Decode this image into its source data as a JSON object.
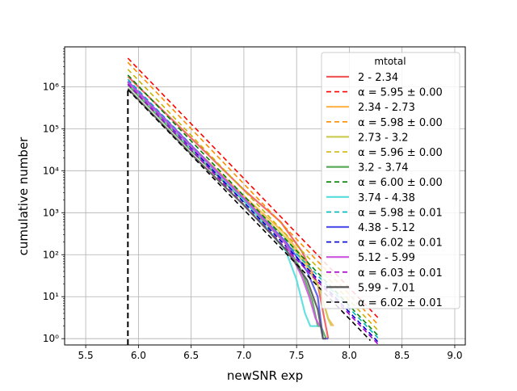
{
  "chart_data": {
    "type": "line",
    "title": "",
    "xlabel": "newSNR exp",
    "ylabel": "cumulative number",
    "xlim": [
      5.3,
      9.1
    ],
    "ylim_log10": [
      -0.15,
      6.95
    ],
    "yscale": "log",
    "grid": true,
    "legend_title": "mtotal",
    "legend_placement": "upper right",
    "x_ticks": [
      5.5,
      6.0,
      6.5,
      7.0,
      7.5,
      8.0,
      8.5,
      9.0
    ],
    "x_tick_labels": [
      "5.5",
      "6.0",
      "6.5",
      "7.0",
      "7.5",
      "8.0",
      "8.5",
      "9.0"
    ],
    "y_ticks_log10": [
      0,
      1,
      2,
      3,
      4,
      5,
      6
    ],
    "y_tick_labels": [
      "10⁰",
      "10¹",
      "10²",
      "10³",
      "10⁴",
      "10⁵",
      "10⁶"
    ],
    "threshold_x": 5.9,
    "series": [
      {
        "name": "2 - 2.34",
        "color": "#f25a5a",
        "x": [
          5.9,
          6.5,
          7.0,
          7.35,
          7.55,
          7.7,
          7.8
        ],
        "y": [
          1750000,
          60000,
          3500,
          600,
          120,
          20,
          1
        ]
      },
      {
        "name": "α = 5.95 ± 0.00",
        "color": "#ff0000",
        "dashed": true,
        "x": [
          5.9,
          8.27
        ],
        "y": [
          4800000,
          3.2
        ]
      },
      {
        "name": "2.34 - 2.73",
        "color": "#ffb347",
        "x": [
          5.9,
          6.5,
          7.0,
          7.4,
          7.6,
          7.72,
          7.8,
          7.85
        ],
        "y": [
          1300000,
          40000,
          2500,
          300,
          60,
          15,
          3,
          2
        ]
      },
      {
        "name": "α = 5.98 ± 0.00",
        "color": "#ff8c00",
        "dashed": true,
        "x": [
          5.9,
          8.27
        ],
        "y": [
          3800000,
          2.2
        ]
      },
      {
        "name": "2.73 - 3.2",
        "color": "#cccc55",
        "x": [
          5.9,
          6.5,
          7.0,
          7.4,
          7.6,
          7.72,
          7.8,
          7.83
        ],
        "y": [
          1200000,
          35000,
          2200,
          250,
          50,
          15,
          3,
          2
        ]
      },
      {
        "name": "α = 5.96 ± 0.00",
        "color": "#c8b400",
        "dashed": true,
        "x": [
          5.9,
          8.27
        ],
        "y": [
          2600000,
          1.6
        ]
      },
      {
        "name": "3.2 - 3.74",
        "color": "#5aaa5a",
        "x": [
          5.9,
          6.5,
          7.0,
          7.4,
          7.55,
          7.65,
          7.7,
          7.73,
          7.78
        ],
        "y": [
          1100000,
          30000,
          1900,
          180,
          40,
          8,
          2,
          2,
          1
        ]
      },
      {
        "name": "α = 6.00 ± 0.00",
        "color": "#008000",
        "dashed": true,
        "x": [
          5.9,
          8.27
        ],
        "y": [
          1900000,
          1.2
        ]
      },
      {
        "name": "3.74 - 4.38",
        "color": "#55dddd",
        "x": [
          5.9,
          6.5,
          7.0,
          7.4,
          7.5,
          7.58,
          7.63,
          7.7
        ],
        "y": [
          1250000,
          35000,
          2000,
          120,
          25,
          4,
          2,
          2
        ]
      },
      {
        "name": "α = 5.98 ± 0.01",
        "color": "#00bbbb",
        "dashed": true,
        "x": [
          5.9,
          8.27
        ],
        "y": [
          1500000,
          1.05
        ]
      },
      {
        "name": "4.38 - 5.12",
        "color": "#5555ee",
        "x": [
          5.9,
          6.5,
          7.0,
          7.4,
          7.6,
          7.7,
          7.75,
          7.8
        ],
        "y": [
          1350000,
          40000,
          2200,
          200,
          40,
          10,
          1,
          1
        ]
      },
      {
        "name": "α = 6.02 ± 0.01",
        "color": "#0000cc",
        "dashed": true,
        "x": [
          5.9,
          8.27
        ],
        "y": [
          1300000,
          0.85
        ]
      },
      {
        "name": "5.12 - 5.99",
        "color": "#cc55dd",
        "x": [
          5.9,
          6.5,
          7.0,
          7.4,
          7.55,
          7.62,
          7.68,
          7.72
        ],
        "y": [
          1300000,
          38000,
          2200,
          180,
          30,
          10,
          3,
          2
        ]
      },
      {
        "name": "α = 6.03 ± 0.01",
        "color": "#aa00cc",
        "dashed": true,
        "x": [
          5.9,
          8.27
        ],
        "y": [
          1150000,
          0.75
        ]
      },
      {
        "name": "5.99 - 7.01",
        "color": "#555555",
        "x": [
          5.9,
          6.5,
          7.0,
          7.4,
          7.6,
          7.7,
          7.75,
          7.78
        ],
        "y": [
          900000,
          25000,
          1500,
          130,
          25,
          5,
          1,
          1
        ]
      },
      {
        "name": "α = 6.02 ± 0.01",
        "color": "#000000",
        "dashed": true,
        "x": [
          5.9,
          8.2
        ],
        "y": [
          850000,
          0.9
        ]
      }
    ]
  }
}
